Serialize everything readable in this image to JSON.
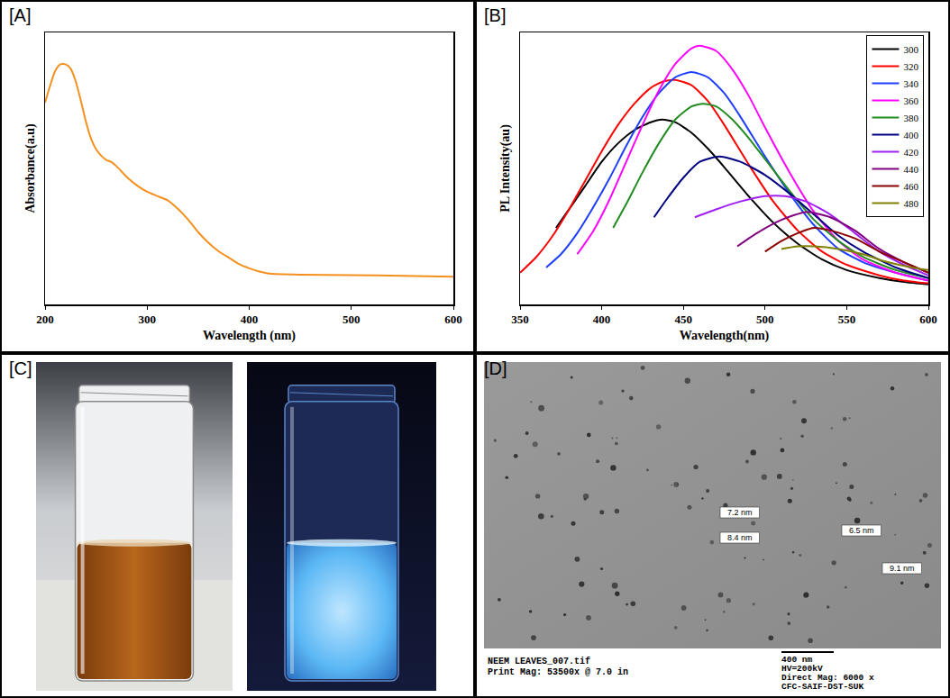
{
  "chart_data": [
    {
      "panel": "[A]",
      "type": "line",
      "x_label": "Wavelength (nm)",
      "y_label": "Absorbance(a.u)",
      "x": [
        200,
        205,
        210,
        215,
        220,
        225,
        230,
        235,
        240,
        245,
        250,
        255,
        260,
        265,
        270,
        280,
        290,
        300,
        310,
        320,
        330,
        340,
        350,
        360,
        370,
        380,
        390,
        400,
        410,
        420,
        450,
        500,
        550,
        600
      ],
      "values": [
        0.82,
        0.9,
        0.97,
        1.0,
        1.0,
        0.98,
        0.92,
        0.83,
        0.73,
        0.65,
        0.6,
        0.57,
        0.55,
        0.54,
        0.52,
        0.47,
        0.43,
        0.4,
        0.38,
        0.36,
        0.32,
        0.27,
        0.21,
        0.16,
        0.12,
        0.09,
        0.06,
        0.04,
        0.025,
        0.015,
        0.01,
        0.008,
        0.005,
        0.0
      ],
      "color": "#f5901e",
      "xlim": [
        200,
        600
      ],
      "xticks": [
        200,
        300,
        400,
        500,
        600
      ],
      "ylim": [
        -0.13,
        1.15
      ],
      "tick_labels": "x",
      "grid": false
    },
    {
      "panel": "[B]",
      "type": "line",
      "x_label": "Wavelength(nm)",
      "y_label": "PL Intensity(au)",
      "series": [
        {
          "name": "300",
          "color": "#000000",
          "x": [
            372,
            380,
            390,
            400,
            410,
            420,
            430,
            437,
            445,
            455,
            465,
            475,
            490,
            505,
            520,
            535,
            550,
            570,
            585,
            600
          ],
          "values": [
            0.29,
            0.36,
            0.45,
            0.54,
            0.61,
            0.66,
            0.69,
            0.7,
            0.69,
            0.65,
            0.59,
            0.52,
            0.41,
            0.31,
            0.23,
            0.17,
            0.13,
            0.1,
            0.085,
            0.076
          ]
        },
        {
          "name": "320",
          "color": "#ff0000",
          "x": [
            350,
            360,
            370,
            380,
            390,
            400,
            410,
            420,
            430,
            438,
            445,
            455,
            465,
            475,
            490,
            505,
            520,
            535,
            550,
            570,
            585,
            600
          ],
          "values": [
            0.12,
            0.18,
            0.26,
            0.36,
            0.47,
            0.58,
            0.68,
            0.76,
            0.82,
            0.845,
            0.85,
            0.83,
            0.77,
            0.68,
            0.53,
            0.39,
            0.28,
            0.2,
            0.15,
            0.11,
            0.09,
            0.08
          ]
        },
        {
          "name": "340",
          "color": "#1f3fff",
          "x": [
            366,
            375,
            385,
            395,
            405,
            415,
            425,
            435,
            445,
            455,
            465,
            475,
            485,
            500,
            515,
            530,
            545,
            560,
            580,
            600
          ],
          "values": [
            0.14,
            0.19,
            0.27,
            0.37,
            0.48,
            0.6,
            0.71,
            0.8,
            0.86,
            0.88,
            0.86,
            0.8,
            0.71,
            0.56,
            0.42,
            0.3,
            0.21,
            0.16,
            0.12,
            0.09
          ]
        },
        {
          "name": "360",
          "color": "#ff00ff",
          "x": [
            385,
            395,
            405,
            415,
            425,
            435,
            445,
            455,
            460,
            470,
            480,
            490,
            500,
            515,
            530,
            545,
            560,
            580,
            600
          ],
          "values": [
            0.19,
            0.28,
            0.4,
            0.54,
            0.68,
            0.81,
            0.91,
            0.97,
            0.98,
            0.96,
            0.89,
            0.79,
            0.67,
            0.5,
            0.35,
            0.24,
            0.17,
            0.12,
            0.09
          ]
        },
        {
          "name": "380",
          "color": "#228b22",
          "x": [
            407,
            415,
            425,
            435,
            445,
            455,
            462,
            470,
            480,
            490,
            500,
            515,
            530,
            545,
            560,
            580,
            600
          ],
          "values": [
            0.29,
            0.38,
            0.5,
            0.61,
            0.7,
            0.75,
            0.76,
            0.75,
            0.7,
            0.63,
            0.55,
            0.43,
            0.32,
            0.24,
            0.18,
            0.13,
            0.1
          ]
        },
        {
          "name": "400",
          "color": "#000080",
          "x": [
            432,
            440,
            450,
            460,
            472,
            485,
            500,
            515,
            530,
            545,
            560,
            580,
            600
          ],
          "values": [
            0.33,
            0.4,
            0.48,
            0.54,
            0.56,
            0.54,
            0.49,
            0.42,
            0.34,
            0.26,
            0.2,
            0.14,
            0.1
          ]
        },
        {
          "name": "420",
          "color": "#a020f0",
          "x": [
            457,
            470,
            485,
            500,
            512,
            525,
            540,
            555,
            570,
            585,
            600
          ],
          "values": [
            0.33,
            0.36,
            0.39,
            0.41,
            0.41,
            0.39,
            0.34,
            0.27,
            0.2,
            0.15,
            0.11
          ]
        },
        {
          "name": "440",
          "color": "#800080",
          "x": [
            483,
            495,
            510,
            525,
            540,
            555,
            570,
            585,
            600
          ],
          "values": [
            0.22,
            0.27,
            0.32,
            0.35,
            0.33,
            0.28,
            0.21,
            0.16,
            0.12
          ]
        },
        {
          "name": "460",
          "color": "#8b0000",
          "x": [
            500,
            510,
            520,
            530,
            540,
            555,
            570,
            585,
            600
          ],
          "values": [
            0.2,
            0.24,
            0.27,
            0.29,
            0.28,
            0.25,
            0.2,
            0.16,
            0.12
          ]
        },
        {
          "name": "480",
          "color": "#808000",
          "x": [
            510,
            520,
            530,
            545,
            560,
            575,
            590,
            600
          ],
          "values": [
            0.21,
            0.22,
            0.22,
            0.21,
            0.19,
            0.16,
            0.14,
            0.13
          ]
        }
      ],
      "xlim": [
        350,
        600
      ],
      "xticks": [
        350,
        400,
        450,
        500,
        550,
        600
      ],
      "ylim": [
        0,
        1.03
      ],
      "tick_labels": "x",
      "legend": "top-right",
      "grid": false
    }
  ],
  "photos": {
    "panel": "[C]"
  },
  "micrograph": {
    "panel": "[D]",
    "size_labels": [
      "7.2 nm",
      "6.5 nm",
      "8.4 nm",
      "9.1 nm"
    ],
    "footer_left": [
      "NEEM LEAVES_007.tif",
      "Print Mag: 53500x @ 7.0 in"
    ],
    "footer_right": [
      "400 nm",
      "HV=200kV",
      "Direct Mag: 6000 x",
      "CFC-SAIF-DST-SUK"
    ]
  }
}
